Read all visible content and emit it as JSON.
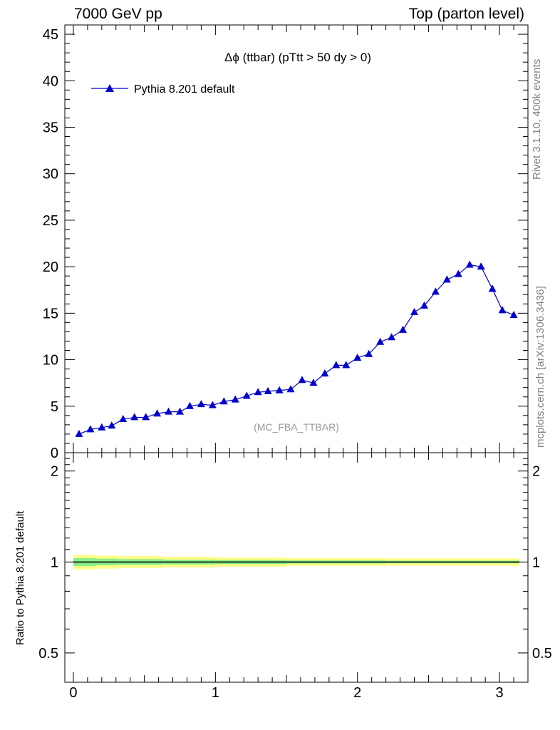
{
  "header": {
    "left": "7000 GeV pp",
    "right": "Top (parton level)"
  },
  "side_labels": {
    "rivet": "Rivet 3.1.10,  400k events",
    "mcplots": "mcplots.cern.ch [arXiv:1306.3436]"
  },
  "chart_data": [
    {
      "type": "line",
      "title": "Δϕ (ttbar) (pTtt > 50 dy > 0)",
      "watermark": "(MC_FBA_TTBAR)",
      "xlim": [
        -0.06,
        3.2
      ],
      "ylim": [
        0,
        46
      ],
      "y_ticks": [
        "0",
        "5",
        "10",
        "15",
        "20",
        "25",
        "30",
        "35",
        "40",
        "45"
      ],
      "legend_position": "top-left",
      "grid": false,
      "series": [
        {
          "name": "Pythia 8.201 default",
          "color": "#0000cc",
          "marker": "triangle",
          "x": [
            0.04,
            0.12,
            0.2,
            0.27,
            0.35,
            0.43,
            0.51,
            0.59,
            0.67,
            0.75,
            0.82,
            0.9,
            0.98,
            1.06,
            1.14,
            1.22,
            1.3,
            1.37,
            1.45,
            1.53,
            1.61,
            1.69,
            1.77,
            1.85,
            1.92,
            2.0,
            2.08,
            2.16,
            2.24,
            2.32,
            2.4,
            2.47,
            2.55,
            2.63,
            2.71,
            2.79,
            2.87,
            2.95,
            3.02,
            3.1
          ],
          "y": [
            2.0,
            2.5,
            2.7,
            2.9,
            3.6,
            3.8,
            3.8,
            4.2,
            4.4,
            4.4,
            5.0,
            5.2,
            5.1,
            5.5,
            5.7,
            6.1,
            6.5,
            6.6,
            6.7,
            6.8,
            7.8,
            7.5,
            8.5,
            9.4,
            9.4,
            10.2,
            10.6,
            11.9,
            12.4,
            13.2,
            15.1,
            15.8,
            17.3,
            18.6,
            19.2,
            20.2,
            20.0,
            17.6,
            15.3,
            14.8
          ]
        }
      ]
    },
    {
      "type": "area",
      "ylabel": "Ratio to Pythia 8.201 default",
      "xlim": [
        -0.06,
        3.2
      ],
      "ylim": [
        0.4,
        2.3
      ],
      "x_ticks": [
        "0",
        "1",
        "2",
        "3"
      ],
      "y_ticks": [
        "0.5",
        "1",
        "2"
      ],
      "reference_line": 1,
      "bands": [
        {
          "name": "stat+syst",
          "color": "#ffff88",
          "x_edges": [
            0.0,
            0.16,
            0.31,
            0.63,
            1.0,
            1.5,
            2.2,
            3.14
          ],
          "half_width": [
            0.055,
            0.05,
            0.045,
            0.04,
            0.035,
            0.03,
            0.028,
            0.025
          ]
        },
        {
          "name": "stat",
          "color": "#88ee88",
          "x_edges": [
            0.0,
            0.16,
            0.31,
            0.63,
            1.0,
            1.5,
            2.2,
            3.14
          ],
          "half_width": [
            0.03,
            0.025,
            0.022,
            0.018,
            0.015,
            0.012,
            0.01,
            0.008
          ]
        }
      ]
    }
  ]
}
